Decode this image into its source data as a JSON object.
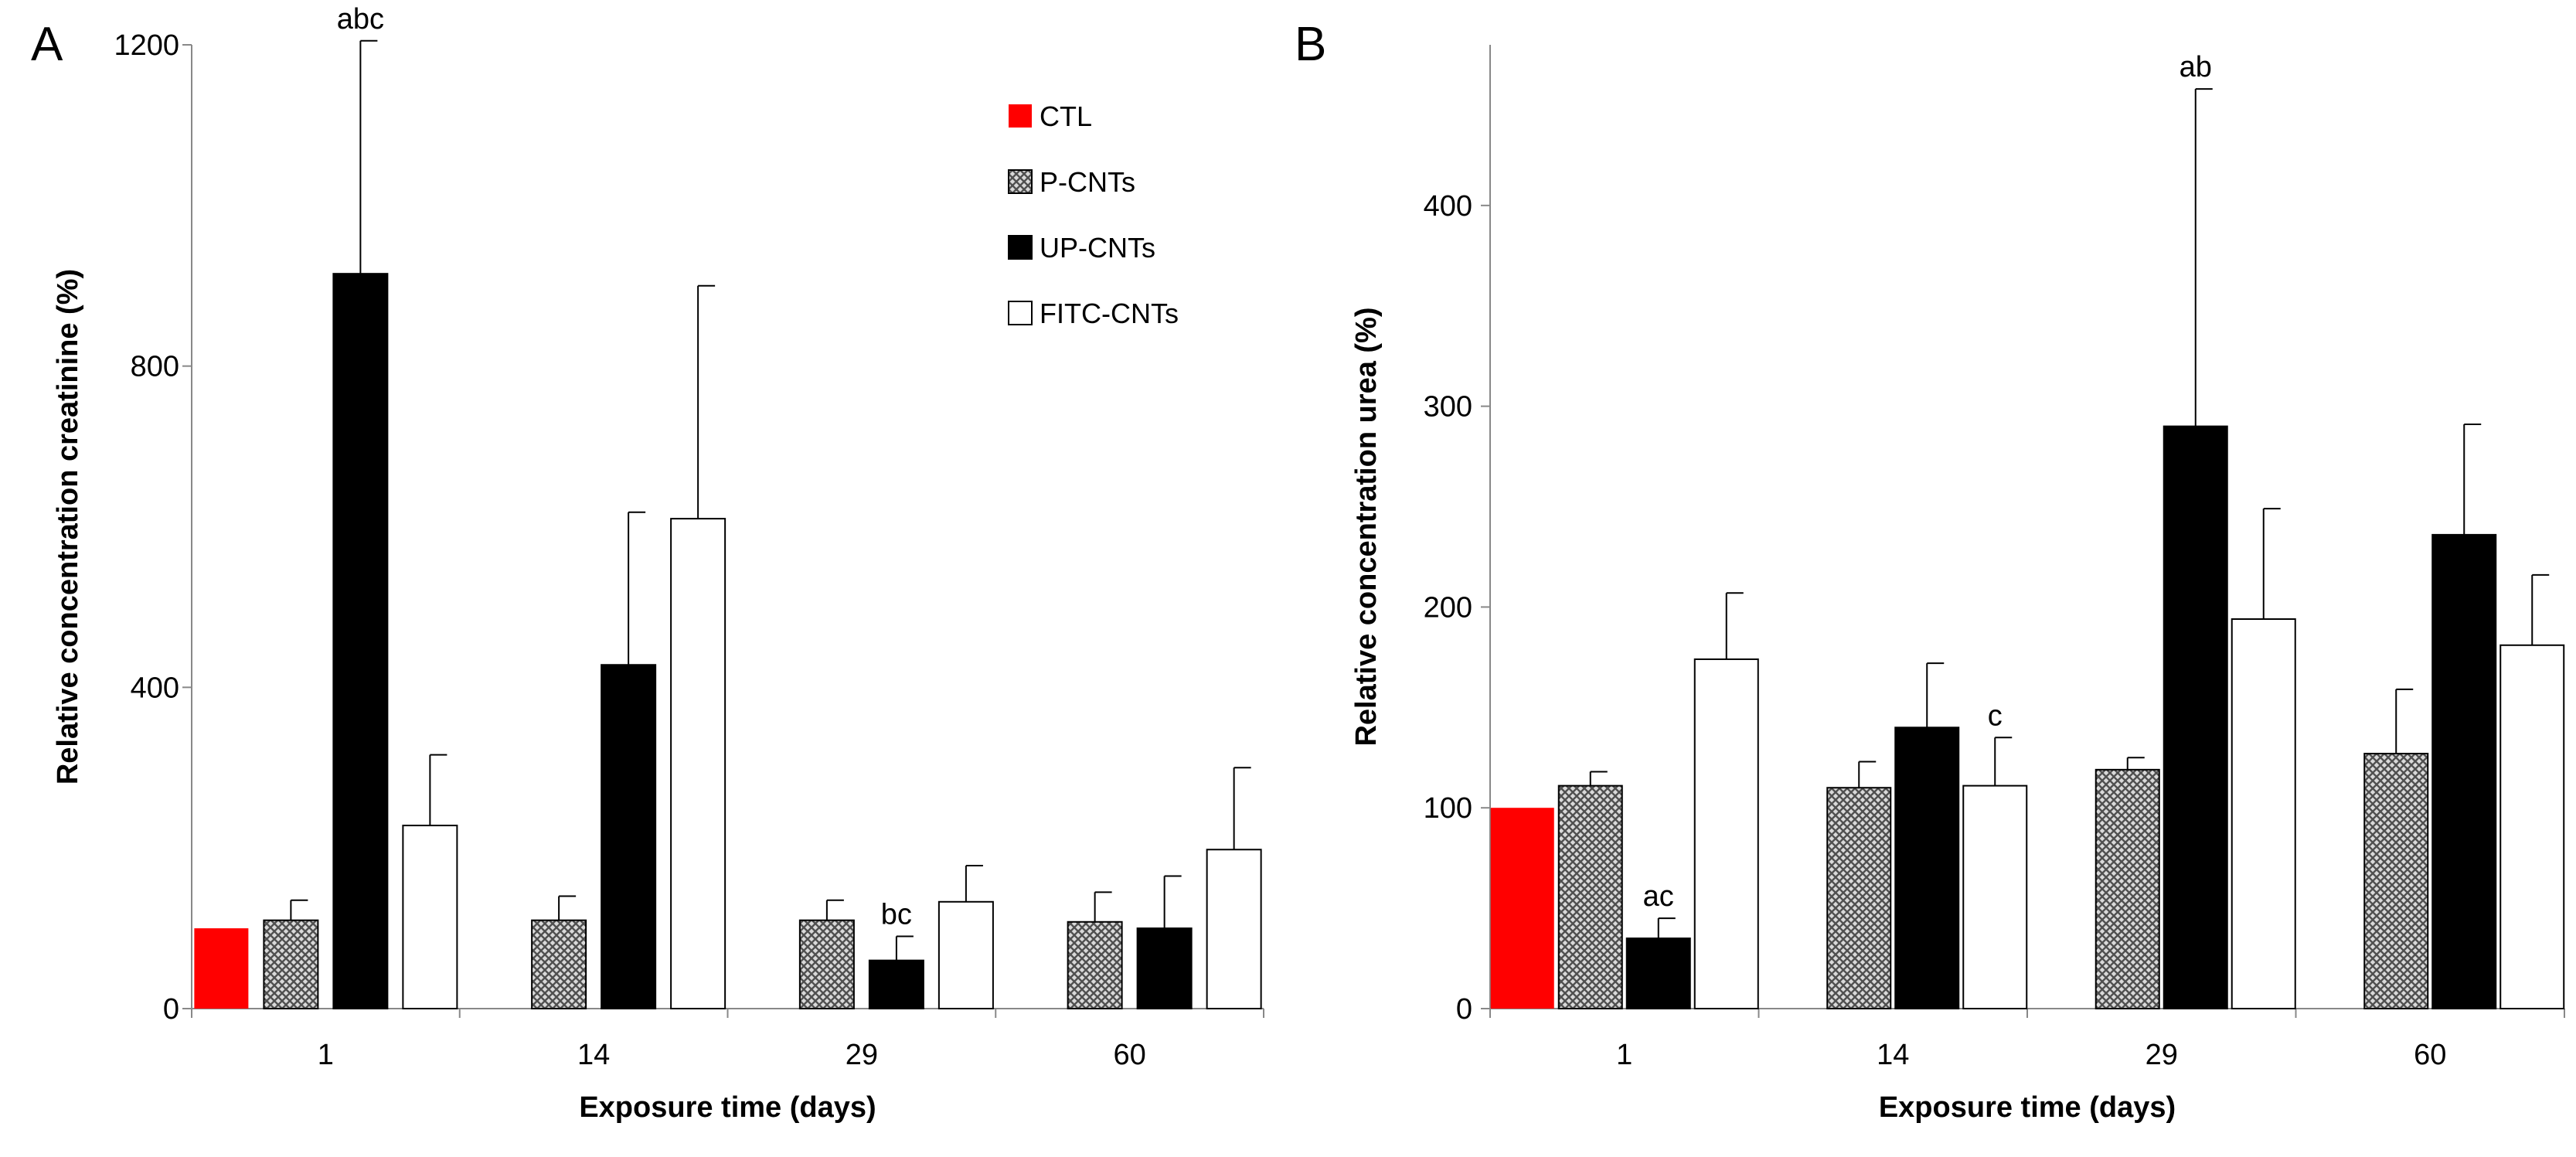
{
  "figure": {
    "panel_letters": [
      "A",
      "B"
    ]
  },
  "legend": {
    "entries": [
      {
        "label": "CTL",
        "pattern": "red"
      },
      {
        "label": "P-CNTs",
        "pattern": "crosshatch"
      },
      {
        "label": "UP-CNTs",
        "pattern": "black"
      },
      {
        "label": "FITC-CNTs",
        "pattern": "white"
      }
    ]
  },
  "colors": {
    "CTL": "#ff0000",
    "P-CNTs": "#9a9a9a",
    "UP-CNTs": "#000000",
    "FITC-CNTs": "#ffffff"
  },
  "chart_data": [
    {
      "type": "bar",
      "panel": "A",
      "xlabel": "Exposure time (days)",
      "ylabel": "Relative concentration creatinine (%)",
      "categories": [
        "1",
        "14",
        "29",
        "60"
      ],
      "ylim": [
        0,
        1200
      ],
      "yticks": [
        0,
        400,
        800,
        1200
      ],
      "series": [
        {
          "name": "CTL",
          "values": [
            100,
            null,
            null,
            null
          ],
          "errors": [
            null,
            null,
            null,
            null
          ]
        },
        {
          "name": "P-CNTs",
          "values": [
            110,
            110,
            110,
            108
          ],
          "errors": [
            25,
            30,
            25,
            37
          ]
        },
        {
          "name": "UP-CNTs",
          "values": [
            915,
            428,
            60,
            100
          ],
          "errors": [
            290,
            190,
            30,
            65
          ]
        },
        {
          "name": "FITC-CNTs",
          "values": [
            228,
            610,
            133,
            198
          ],
          "errors": [
            88,
            290,
            45,
            102
          ]
        }
      ],
      "annotations": [
        {
          "category": "1",
          "series": "UP-CNTs",
          "text": "abc"
        },
        {
          "category": "29",
          "series": "UP-CNTs",
          "text": "bc"
        }
      ]
    },
    {
      "type": "bar",
      "panel": "B",
      "xlabel": "Exposure time (days)",
      "ylabel": "Relative concentration urea (%)",
      "categories": [
        "1",
        "14",
        "29",
        "60"
      ],
      "ylim": [
        0,
        480
      ],
      "yticks": [
        0,
        100,
        200,
        300,
        400
      ],
      "series": [
        {
          "name": "CTL",
          "values": [
            100,
            null,
            null,
            null
          ],
          "errors": [
            null,
            null,
            null,
            null
          ]
        },
        {
          "name": "P-CNTs",
          "values": [
            111,
            110,
            119,
            127
          ],
          "errors": [
            7,
            13,
            6,
            32
          ]
        },
        {
          "name": "UP-CNTs",
          "values": [
            35,
            140,
            290,
            236
          ],
          "errors": [
            10,
            32,
            168,
            55
          ]
        },
        {
          "name": "FITC-CNTs",
          "values": [
            174,
            111,
            194,
            181
          ],
          "errors": [
            33,
            24,
            55,
            35
          ]
        }
      ],
      "annotations": [
        {
          "category": "1",
          "series": "UP-CNTs",
          "text": "ac"
        },
        {
          "category": "14",
          "series": "FITC-CNTs",
          "text": "c"
        },
        {
          "category": "29",
          "series": "UP-CNTs",
          "text": "ab"
        }
      ]
    }
  ]
}
